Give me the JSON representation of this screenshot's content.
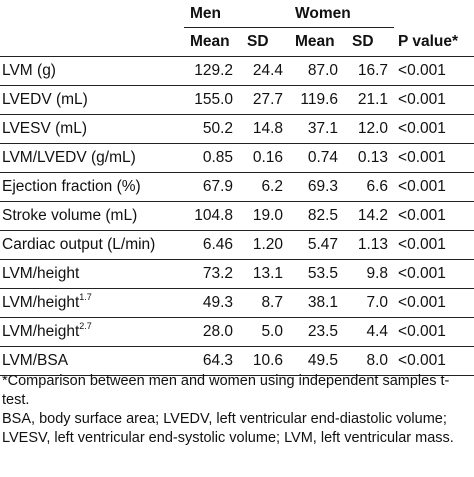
{
  "table": {
    "group_headers": {
      "men": "Men",
      "women": "Women"
    },
    "sub_headers": {
      "men_mean": "Mean",
      "men_sd": "SD",
      "women_mean": "Mean",
      "women_sd": "SD",
      "p_value": "P value*"
    },
    "rows": [
      {
        "label": "LVM (g)",
        "sup": "",
        "men_mean": "129.2",
        "men_sd": "24.4",
        "women_mean": "87.0",
        "women_sd": "16.7",
        "p": "<0.001"
      },
      {
        "label": "LVEDV (mL)",
        "sup": "",
        "men_mean": "155.0",
        "men_sd": "27.7",
        "women_mean": "119.6",
        "women_sd": "21.1",
        "p": "<0.001"
      },
      {
        "label": "LVESV (mL)",
        "sup": "",
        "men_mean": "50.2",
        "men_sd": "14.8",
        "women_mean": "37.1",
        "women_sd": "12.0",
        "p": "<0.001"
      },
      {
        "label": "LVM/LVEDV (g/mL)",
        "sup": "",
        "men_mean": "0.85",
        "men_sd": "0.16",
        "women_mean": "0.74",
        "women_sd": "0.13",
        "p": "<0.001"
      },
      {
        "label": "Ejection fraction (%)",
        "sup": "",
        "men_mean": "67.9",
        "men_sd": "6.2",
        "women_mean": "69.3",
        "women_sd": "6.6",
        "p": "<0.001"
      },
      {
        "label": "Stroke volume (mL)",
        "sup": "",
        "men_mean": "104.8",
        "men_sd": "19.0",
        "women_mean": "82.5",
        "women_sd": "14.2",
        "p": "<0.001"
      },
      {
        "label": "Cardiac output (L/min)",
        "sup": "",
        "men_mean": "6.46",
        "men_sd": "1.20",
        "women_mean": "5.47",
        "women_sd": "1.13",
        "p": "<0.001"
      },
      {
        "label": "LVM/height",
        "sup": "",
        "men_mean": "73.2",
        "men_sd": "13.1",
        "women_mean": "53.5",
        "women_sd": "9.8",
        "p": "<0.001"
      },
      {
        "label": "LVM/height",
        "sup": "1.7",
        "men_mean": "49.3",
        "men_sd": "8.7",
        "women_mean": "38.1",
        "women_sd": "7.0",
        "p": "<0.001"
      },
      {
        "label": "LVM/height",
        "sup": "2.7",
        "men_mean": "28.0",
        "men_sd": "5.0",
        "women_mean": "23.5",
        "women_sd": "4.4",
        "p": "<0.001"
      },
      {
        "label": "LVM/BSA",
        "sup": "",
        "men_mean": "64.3",
        "men_sd": "10.6",
        "women_mean": "49.5",
        "women_sd": "8.0",
        "p": "<0.001"
      }
    ]
  },
  "footnotes": {
    "comparison": "*Comparison between men and women using independent samples t-test.",
    "abbreviations": "BSA, body surface area; LVEDV, left ventricular end-diastolic volume; LVESV, left ventricular end-systolic volume; LVM, left ventricular mass."
  }
}
